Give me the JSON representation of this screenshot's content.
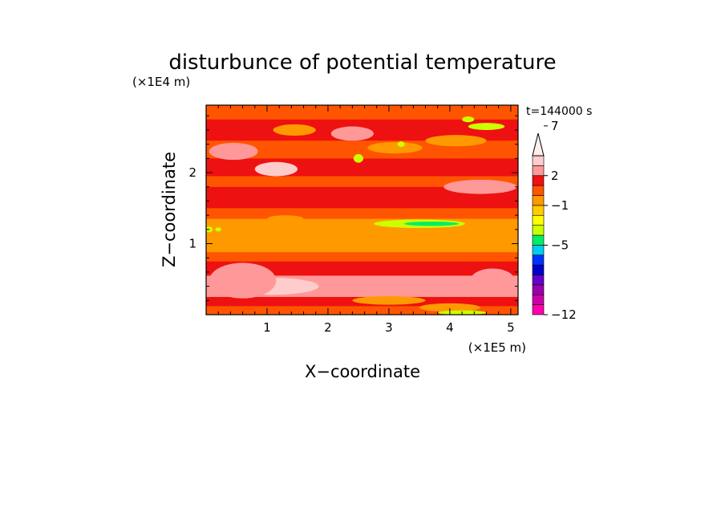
{
  "chart_data": {
    "type": "heatmap",
    "title": "disturbunce of potential temperature",
    "xlabel": "X−coordinate",
    "ylabel": "Z−coordinate",
    "x_unit": "(×1E5 m)",
    "y_unit": "(×1E4 m)",
    "time_label": "t=144000 s",
    "xlim": [
      0,
      5.12
    ],
    "ylim": [
      0,
      2.95
    ],
    "x_ticks": [
      1,
      2,
      3,
      4,
      5
    ],
    "x_tick_labels": [
      "1",
      "2",
      "3",
      "4",
      "5"
    ],
    "y_ticks": [
      1,
      2
    ],
    "y_tick_labels": [
      "1",
      "2"
    ],
    "colorbar": {
      "levels": [
        -12,
        -11,
        -10,
        -9,
        -8,
        -7,
        -6,
        -5,
        -4,
        -3,
        -2,
        -1,
        0,
        1,
        2,
        3,
        4,
        5,
        6,
        7,
        8,
        9,
        10
      ],
      "colors": [
        "#ff00aa",
        "#cc00aa",
        "#9900aa",
        "#6600cc",
        "#0000cc",
        "#0033ff",
        "#00ccee",
        "#00ee66",
        "#ccff00",
        "#ffff00",
        "#ffcc00",
        "#ff9900",
        "#ff5500",
        "#ee1111",
        "#ff9999",
        "#ffcccc"
      ],
      "labeled_values": [
        -12,
        -5,
        -1,
        2,
        7
      ],
      "labels": [
        "−12",
        "−5",
        "−1",
        "2",
        "7"
      ],
      "extend_max": true
    },
    "bands": [
      {
        "z0": 0.0,
        "z1": 0.12,
        "value": 0
      },
      {
        "z0": 0.12,
        "z1": 0.25,
        "value": 1
      },
      {
        "z0": 0.25,
        "z1": 0.55,
        "value": 2
      },
      {
        "z0": 0.55,
        "z1": 0.75,
        "value": 1
      },
      {
        "z0": 0.75,
        "z1": 0.88,
        "value": 0
      },
      {
        "z0": 0.88,
        "z1": 1.35,
        "value": -1
      },
      {
        "z0": 1.35,
        "z1": 1.5,
        "value": 0
      },
      {
        "z0": 1.5,
        "z1": 1.8,
        "value": 1
      },
      {
        "z0": 1.8,
        "z1": 1.95,
        "value": 0
      },
      {
        "z0": 1.95,
        "z1": 2.2,
        "value": 1
      },
      {
        "z0": 2.2,
        "z1": 2.45,
        "value": 0
      },
      {
        "z0": 2.45,
        "z1": 2.75,
        "value": 1
      },
      {
        "z0": 2.75,
        "z1": 2.95,
        "value": 0
      }
    ],
    "features": [
      {
        "x": 1.05,
        "z": 0.4,
        "rx": 0.8,
        "rz": 0.12,
        "value": 3
      },
      {
        "x": 0.6,
        "z": 0.48,
        "rx": 0.55,
        "rz": 0.25,
        "value": 2
      },
      {
        "x": 1.15,
        "z": 2.05,
        "rx": 0.35,
        "rz": 0.1,
        "value": 3
      },
      {
        "x": 0.45,
        "z": 2.3,
        "rx": 0.4,
        "rz": 0.12,
        "value": 2
      },
      {
        "x": 2.4,
        "z": 2.55,
        "rx": 0.35,
        "rz": 0.1,
        "value": 2
      },
      {
        "x": 3.5,
        "z": 1.28,
        "rx": 0.75,
        "rz": 0.06,
        "value": -4
      },
      {
        "x": 3.7,
        "z": 1.28,
        "rx": 0.45,
        "rz": 0.03,
        "value": -5
      },
      {
        "x": 1.3,
        "z": 1.35,
        "rx": 0.3,
        "rz": 0.05,
        "value": -1
      },
      {
        "x": 4.6,
        "z": 2.65,
        "rx": 0.3,
        "rz": 0.05,
        "value": -4
      },
      {
        "x": 4.3,
        "z": 2.75,
        "rx": 0.1,
        "rz": 0.04,
        "value": -4
      },
      {
        "x": 3.1,
        "z": 2.35,
        "rx": 0.45,
        "rz": 0.08,
        "value": -1
      },
      {
        "x": 4.1,
        "z": 2.45,
        "rx": 0.5,
        "rz": 0.08,
        "value": -1
      },
      {
        "x": 1.45,
        "z": 2.6,
        "rx": 0.35,
        "rz": 0.08,
        "value": -1
      },
      {
        "x": 2.5,
        "z": 2.2,
        "rx": 0.08,
        "rz": 0.06,
        "value": -4
      },
      {
        "x": 3.2,
        "z": 2.4,
        "rx": 0.06,
        "rz": 0.04,
        "value": -4
      },
      {
        "x": 3.0,
        "z": 0.2,
        "rx": 0.6,
        "rz": 0.06,
        "value": -1
      },
      {
        "x": 4.0,
        "z": 0.1,
        "rx": 0.5,
        "rz": 0.06,
        "value": -1
      },
      {
        "x": 4.2,
        "z": 0.03,
        "rx": 0.4,
        "rz": 0.03,
        "value": -4
      },
      {
        "x": 4.5,
        "z": 1.8,
        "rx": 0.6,
        "rz": 0.1,
        "value": 2
      },
      {
        "x": 4.7,
        "z": 0.5,
        "rx": 0.35,
        "rz": 0.15,
        "value": 2
      },
      {
        "x": 0.05,
        "z": 1.2,
        "rx": 0.06,
        "rz": 0.04,
        "value": -4
      },
      {
        "x": 0.2,
        "z": 1.2,
        "rx": 0.05,
        "rz": 0.03,
        "value": -4
      }
    ]
  }
}
